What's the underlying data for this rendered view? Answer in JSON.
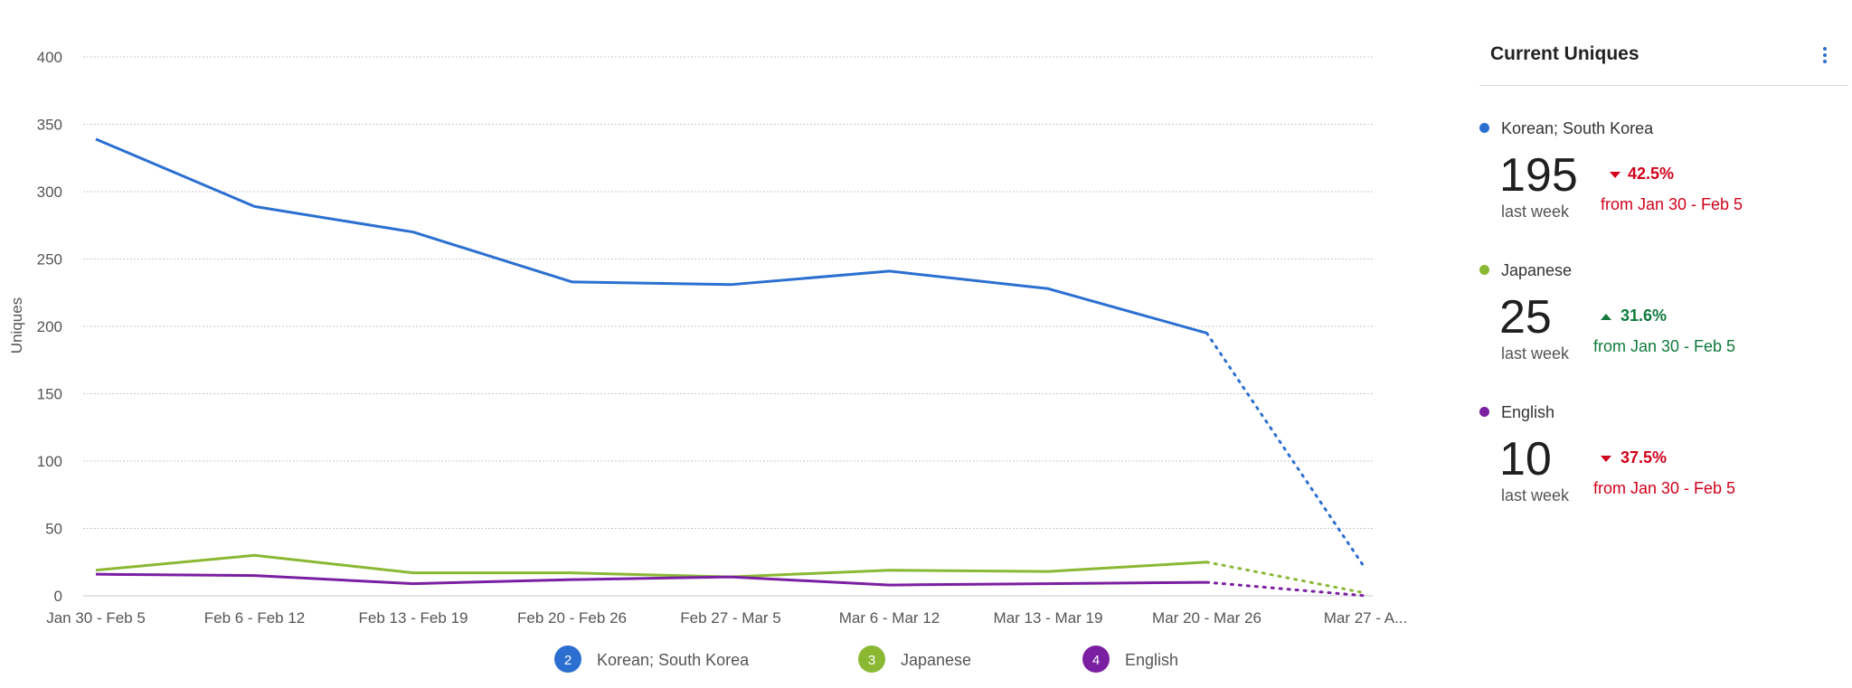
{
  "chart_data": {
    "type": "line",
    "ylabel": "Uniques",
    "ylim": [
      0,
      400
    ],
    "yticks": [
      0,
      50,
      100,
      150,
      200,
      250,
      300,
      350,
      400
    ],
    "categories": [
      "Jan 30 - Feb 5",
      "Feb 6 - Feb 12",
      "Feb 13 - Feb 19",
      "Feb 20 - Feb 26",
      "Feb 27 - Mar 5",
      "Mar 6 - Mar 12",
      "Mar 13 - Mar 19",
      "Mar 20 - Mar 26",
      "Mar 27 - A..."
    ],
    "grid": true,
    "incomplete_last_period": true,
    "legend_position": "bottom",
    "series": [
      {
        "name": "Korean; South Korea",
        "number": "2",
        "color": "#2b6fd1",
        "values": [
          339,
          289,
          270,
          233,
          231,
          241,
          228,
          195,
          20
        ]
      },
      {
        "name": "Japanese",
        "number": "3",
        "color": "#8ab833",
        "values": [
          19,
          30,
          17,
          17,
          14,
          19,
          18,
          25,
          2
        ]
      },
      {
        "name": "English",
        "number": "4",
        "color": "#7b1fa2",
        "values": [
          16,
          15,
          9,
          12,
          14,
          8,
          9,
          10,
          0
        ]
      }
    ]
  },
  "panel": {
    "title": "Current Uniques",
    "metrics": [
      {
        "name": "Korean; South Korea",
        "color": "#2b6fd1",
        "value": "195",
        "sub": "last week",
        "change": "42.5%",
        "direction": "down",
        "from": "from Jan 30 - Feb 5"
      },
      {
        "name": "Japanese",
        "color": "#8ab833",
        "value": "25",
        "sub": "last week",
        "change": "31.6%",
        "direction": "up",
        "from": "from Jan 30 - Feb 5"
      },
      {
        "name": "English",
        "color": "#7b1fa2",
        "value": "10",
        "sub": "last week",
        "change": "37.5%",
        "direction": "down",
        "from": "from Jan 30 - Feb 5"
      }
    ]
  }
}
